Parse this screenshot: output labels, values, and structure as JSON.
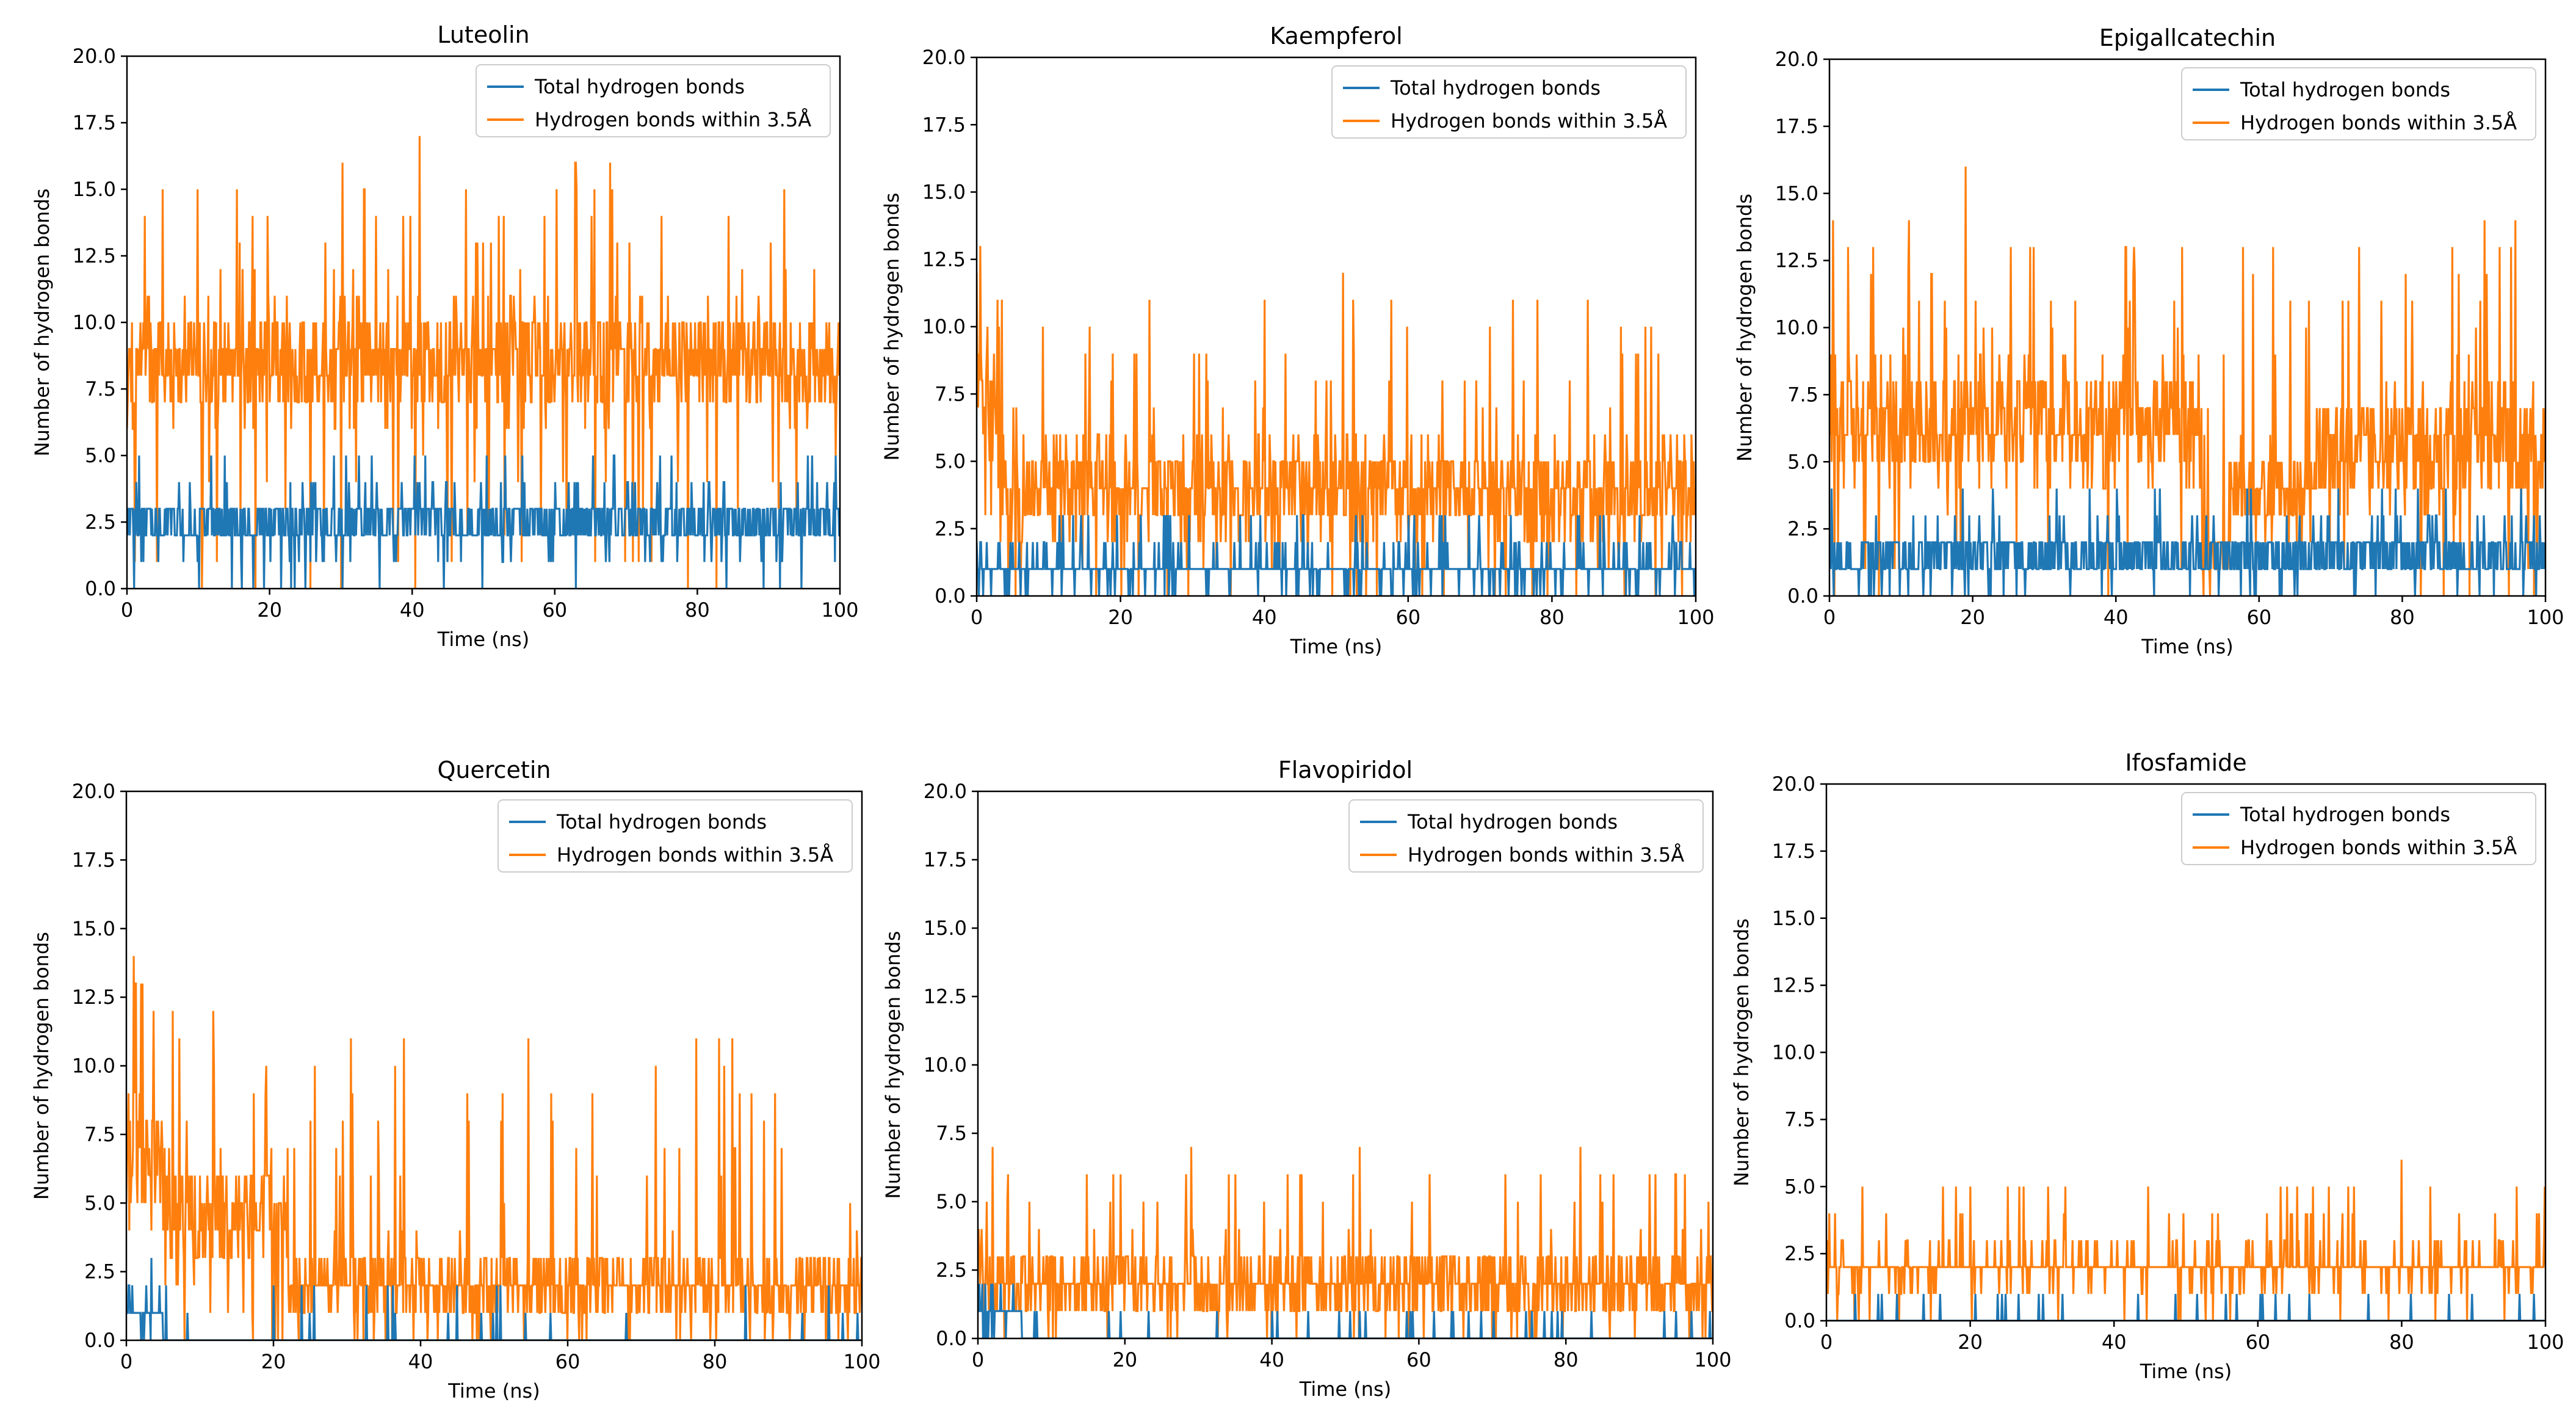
{
  "figure": {
    "description_units": "hydrogen bond counts vs simulation time",
    "colors": {
      "total": "#1f77b4",
      "within": "#ff7f0e"
    }
  },
  "chart_data": [
    {
      "type": "line",
      "title": "Luteolin",
      "xlabel": "Time (ns)",
      "ylabel": "Number of hydrogen bonds",
      "xlim": [
        0,
        100
      ],
      "ylim": [
        0,
        20
      ],
      "xticks": [
        "0",
        "20",
        "40",
        "60",
        "80",
        "100"
      ],
      "yticks": [
        "0.0",
        "2.5",
        "5.0",
        "7.5",
        "10.0",
        "12.5",
        "15.0",
        "17.5",
        "20.0"
      ],
      "legend": [
        "Total hydrogen bonds",
        "Hydrogen bonds within 3.5Å"
      ],
      "legend_loc": "upper right",
      "series": [
        {
          "name": "Total hydrogen bonds",
          "color": "#1f77b4",
          "mean": 3.0,
          "low": 1,
          "high": 4,
          "min": 0,
          "max": 5,
          "segments": [
            {
              "from": 0,
              "to": 100,
              "low": 1,
              "high": 4,
              "mean": 3
            }
          ]
        },
        {
          "name": "Hydrogen bonds within 3.5Å",
          "color": "#ff7f0e",
          "mean": 8.0,
          "low": 5,
          "high": 12,
          "min": 0,
          "max": 17,
          "segments": [
            {
              "from": 0,
              "to": 100,
              "low": 5,
              "high": 12,
              "mean": 8
            }
          ],
          "peaks": [
            [
              41,
              17
            ],
            [
              63,
              16
            ],
            [
              5,
              15
            ],
            [
              30,
              0
            ],
            [
              18,
              0
            ]
          ]
        }
      ]
    },
    {
      "type": "line",
      "title": "Kaempferol",
      "xlabel": "Time (ns)",
      "ylabel": "Number of hydrogen bonds",
      "xlim": [
        0,
        100
      ],
      "ylim": [
        0,
        20
      ],
      "xticks": [
        "0",
        "20",
        "40",
        "60",
        "80",
        "100"
      ],
      "yticks": [
        "0.0",
        "2.5",
        "5.0",
        "7.5",
        "10.0",
        "12.5",
        "15.0",
        "17.5",
        "20.0"
      ],
      "legend": [
        "Total hydrogen bonds",
        "Hydrogen bonds within 3.5Å"
      ],
      "legend_loc": "upper right",
      "series": [
        {
          "name": "Total hydrogen bonds",
          "color": "#1f77b4",
          "mean": 1.0,
          "low": 0,
          "high": 2,
          "min": 0,
          "max": 4,
          "segments": [
            {
              "from": 0,
              "to": 100,
              "low": 0,
              "high": 2,
              "mean": 1
            }
          ]
        },
        {
          "name": "Hydrogen bonds within 3.5Å",
          "color": "#ff7f0e",
          "mean": 4.0,
          "low": 1,
          "high": 7,
          "min": 0,
          "max": 13,
          "segments": [
            {
              "from": 0,
              "to": 3,
              "low": 4,
              "high": 11,
              "mean": 7
            },
            {
              "from": 3,
              "to": 100,
              "low": 1,
              "high": 7,
              "mean": 4
            }
          ],
          "peaks": [
            [
              0.5,
              13
            ],
            [
              51,
              12
            ],
            [
              40,
              11
            ],
            [
              24,
              11
            ],
            [
              78,
              11
            ],
            [
              92,
              9
            ]
          ]
        }
      ]
    },
    {
      "type": "line",
      "title": "Epigallcatechin",
      "xlabel": "Time (ns)",
      "ylabel": "Number of hydrogen bonds",
      "xlim": [
        0,
        100
      ],
      "ylim": [
        0,
        20
      ],
      "xticks": [
        "0",
        "20",
        "40",
        "60",
        "80",
        "100"
      ],
      "yticks": [
        "0.0",
        "2.5",
        "5.0",
        "7.5",
        "10.0",
        "12.5",
        "15.0",
        "17.5",
        "20.0"
      ],
      "legend": [
        "Total hydrogen bonds",
        "Hydrogen bonds within 3.5Å"
      ],
      "legend_loc": "upper right",
      "series": [
        {
          "name": "Total hydrogen bonds",
          "color": "#1f77b4",
          "mean": 1.5,
          "low": 0,
          "high": 3,
          "min": 0,
          "max": 4,
          "segments": [
            {
              "from": 0,
              "to": 100,
              "low": 0,
              "high": 3,
              "mean": 1.5
            }
          ]
        },
        {
          "name": "Hydrogen bonds within 3.5Å",
          "color": "#ff7f0e",
          "mean": 6.0,
          "low": 2,
          "high": 10,
          "min": 0,
          "max": 16,
          "segments": [
            {
              "from": 0,
              "to": 52,
              "low": 3,
              "high": 10,
              "mean": 6.5
            },
            {
              "from": 52,
              "to": 56,
              "low": 0,
              "high": 3,
              "mean": 1
            },
            {
              "from": 56,
              "to": 68,
              "low": 1,
              "high": 7,
              "mean": 4
            },
            {
              "from": 68,
              "to": 100,
              "low": 2,
              "high": 9,
              "mean": 5.5
            }
          ],
          "peaks": [
            [
              19,
              16
            ],
            [
              0.5,
              14
            ],
            [
              28,
              13
            ],
            [
              74,
              13
            ],
            [
              87,
              13
            ]
          ]
        }
      ]
    },
    {
      "type": "line",
      "title": "Quercetin",
      "xlabel": "Time (ns)",
      "ylabel": "Number of hydrogen bonds",
      "xlim": [
        0,
        100
      ],
      "ylim": [
        0,
        20
      ],
      "xticks": [
        "0",
        "20",
        "40",
        "60",
        "80",
        "100"
      ],
      "yticks": [
        "0.0",
        "2.5",
        "5.0",
        "7.5",
        "10.0",
        "12.5",
        "15.0",
        "17.5",
        "20.0"
      ],
      "legend": [
        "Total hydrogen bonds",
        "Hydrogen bonds within 3.5Å"
      ],
      "legend_loc": "upper right",
      "series": [
        {
          "name": "Total hydrogen bonds",
          "color": "#1f77b4",
          "mean": 0.3,
          "low": 0,
          "high": 1,
          "min": 0,
          "max": 3,
          "segments": [
            {
              "from": 0,
              "to": 5,
              "low": 0,
              "high": 2,
              "mean": 1
            },
            {
              "from": 5,
              "to": 100,
              "low": 0,
              "high": 0,
              "mean": 0
            }
          ]
        },
        {
          "name": "Hydrogen bonds within 3.5Å",
          "color": "#ff7f0e",
          "mean": 2.0,
          "low": 0,
          "high": 4,
          "min": 0,
          "max": 14,
          "segments": [
            {
              "from": 0,
              "to": 5,
              "low": 3,
              "high": 11,
              "mean": 7
            },
            {
              "from": 5,
              "to": 22,
              "low": 1,
              "high": 8,
              "mean": 4
            },
            {
              "from": 22,
              "to": 100,
              "low": 0,
              "high": 4,
              "mean": 2
            }
          ],
          "peaks": [
            [
              1,
              14
            ],
            [
              72,
              10
            ],
            [
              19,
              10
            ],
            [
              58,
              8
            ],
            [
              64,
              6
            ]
          ]
        }
      ]
    },
    {
      "type": "line",
      "title": "Flavopiridol",
      "xlabel": "Time (ns)",
      "ylabel": "Number of hydrogen bonds",
      "xlim": [
        0,
        100
      ],
      "ylim": [
        0,
        20
      ],
      "xticks": [
        "0",
        "20",
        "40",
        "60",
        "80",
        "100"
      ],
      "yticks": [
        "0.0",
        "2.5",
        "5.0",
        "7.5",
        "10.0",
        "12.5",
        "15.0",
        "17.5",
        "20.0"
      ],
      "legend": [
        "Total hydrogen bonds",
        "Hydrogen bonds within 3.5Å"
      ],
      "legend_loc": "upper right",
      "series": [
        {
          "name": "Total hydrogen bonds",
          "color": "#1f77b4",
          "mean": 0.2,
          "low": 0,
          "high": 1,
          "min": 0,
          "max": 2,
          "segments": [
            {
              "from": 0,
              "to": 6,
              "low": 0,
              "high": 2,
              "mean": 1
            },
            {
              "from": 6,
              "to": 100,
              "low": 0,
              "high": 0,
              "mean": 0
            }
          ]
        },
        {
          "name": "Hydrogen bonds within 3.5Å",
          "color": "#ff7f0e",
          "mean": 2.0,
          "low": 0,
          "high": 4,
          "min": 0,
          "max": 7,
          "segments": [
            {
              "from": 0,
              "to": 100,
              "low": 0,
              "high": 4,
              "mean": 2
            }
          ],
          "peaks": [
            [
              2,
              7
            ],
            [
              29,
              7
            ],
            [
              52,
              7
            ],
            [
              82,
              7
            ],
            [
              35,
              6
            ]
          ]
        }
      ]
    },
    {
      "type": "line",
      "title": "Ifosfamide",
      "xlabel": "Time (ns)",
      "ylabel": "Number of hydrogen bonds",
      "xlim": [
        0,
        100
      ],
      "ylim": [
        0,
        20
      ],
      "xticks": [
        "0",
        "20",
        "40",
        "60",
        "80",
        "100"
      ],
      "yticks": [
        "0.0",
        "2.5",
        "5.0",
        "7.5",
        "10.0",
        "12.5",
        "15.0",
        "17.5",
        "20.0"
      ],
      "legend": [
        "Total hydrogen bonds",
        "Hydrogen bonds within 3.5Å"
      ],
      "legend_loc": "upper right",
      "series": [
        {
          "name": "Total hydrogen bonds",
          "color": "#1f77b4",
          "mean": 0.1,
          "low": 0,
          "high": 0,
          "min": 0,
          "max": 2,
          "segments": [
            {
              "from": 0,
              "to": 100,
              "low": 0,
              "high": 0,
              "mean": 0
            }
          ]
        },
        {
          "name": "Hydrogen bonds within 3.5Å",
          "color": "#ff7f0e",
          "mean": 2.0,
          "low": 1,
          "high": 3,
          "min": 0,
          "max": 6,
          "segments": [
            {
              "from": 0,
              "to": 100,
              "low": 1,
              "high": 3,
              "mean": 2
            }
          ],
          "peaks": [
            [
              80,
              6
            ],
            [
              5,
              5
            ],
            [
              20,
              5
            ],
            [
              84,
              5
            ],
            [
              96,
              5
            ]
          ]
        }
      ]
    }
  ]
}
